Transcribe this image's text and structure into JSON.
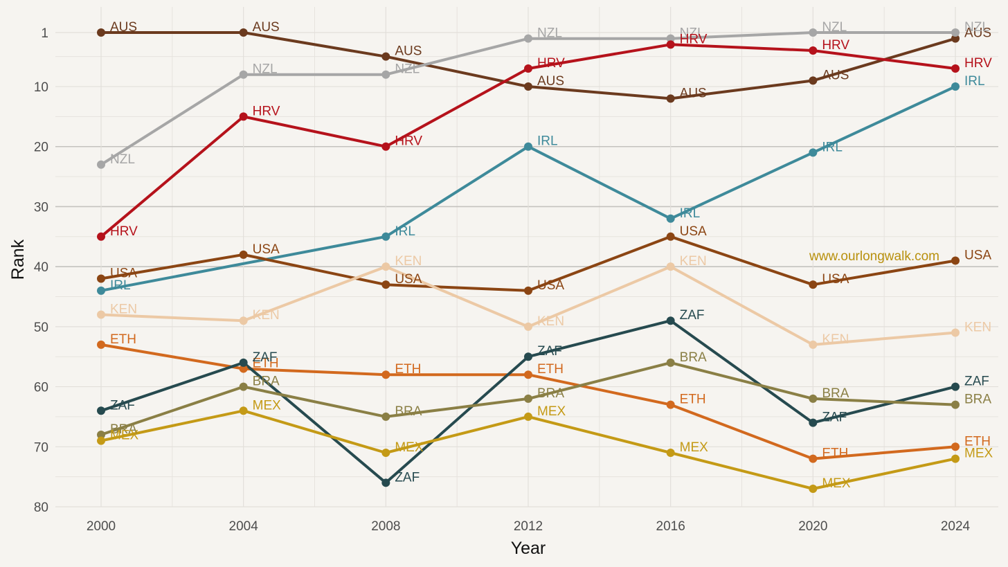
{
  "chart_data": {
    "type": "line",
    "title": "",
    "xlabel": "Year",
    "ylabel": "Rank",
    "x": [
      2000,
      2004,
      2008,
      2012,
      2016,
      2020,
      2024
    ],
    "x_ticks": [
      "2000",
      "2004",
      "2008",
      "2012",
      "2016",
      "2020",
      "2024"
    ],
    "y_ticks": [
      "1",
      "10",
      "20",
      "30",
      "40",
      "50",
      "60",
      "70",
      "80"
    ],
    "ylim": [
      80,
      1
    ],
    "y_reversed": true,
    "grid": true,
    "legend": "none (labels at every point)",
    "watermark": "www.ourlongwalk.com",
    "watermark_color": "#b8900d",
    "series": [
      {
        "name": "AUS",
        "color": "#6b3a1e",
        "values": [
          1,
          1,
          5,
          10,
          12,
          9,
          2
        ]
      },
      {
        "name": "NZL",
        "color": "#a6a6a6",
        "values": [
          23,
          8,
          8,
          2,
          2,
          1,
          1
        ]
      },
      {
        "name": "HRV",
        "color": "#b5121b",
        "values": [
          35,
          15,
          20,
          7,
          3,
          4,
          7
        ]
      },
      {
        "name": "IRL",
        "color": "#3e8a9a",
        "values": [
          44,
          null,
          35,
          20,
          32,
          21,
          10
        ]
      },
      {
        "name": "USA",
        "color": "#8b4513",
        "values": [
          42,
          38,
          43,
          44,
          35,
          43,
          39
        ]
      },
      {
        "name": "KEN",
        "color": "#ecc9a5",
        "values": [
          48,
          49,
          40,
          50,
          40,
          53,
          51
        ]
      },
      {
        "name": "ETH",
        "color": "#d2691e",
        "values": [
          53,
          57,
          58,
          58,
          63,
          72,
          70
        ]
      },
      {
        "name": "ZAF",
        "color": "#264a4f",
        "values": [
          64,
          56,
          76,
          55,
          49,
          66,
          60
        ]
      },
      {
        "name": "BRA",
        "color": "#8a7f45",
        "values": [
          68,
          60,
          65,
          62,
          56,
          62,
          63
        ]
      },
      {
        "name": "MEX",
        "color": "#c49a16",
        "values": [
          69,
          64,
          71,
          65,
          71,
          77,
          72
        ]
      }
    ]
  }
}
